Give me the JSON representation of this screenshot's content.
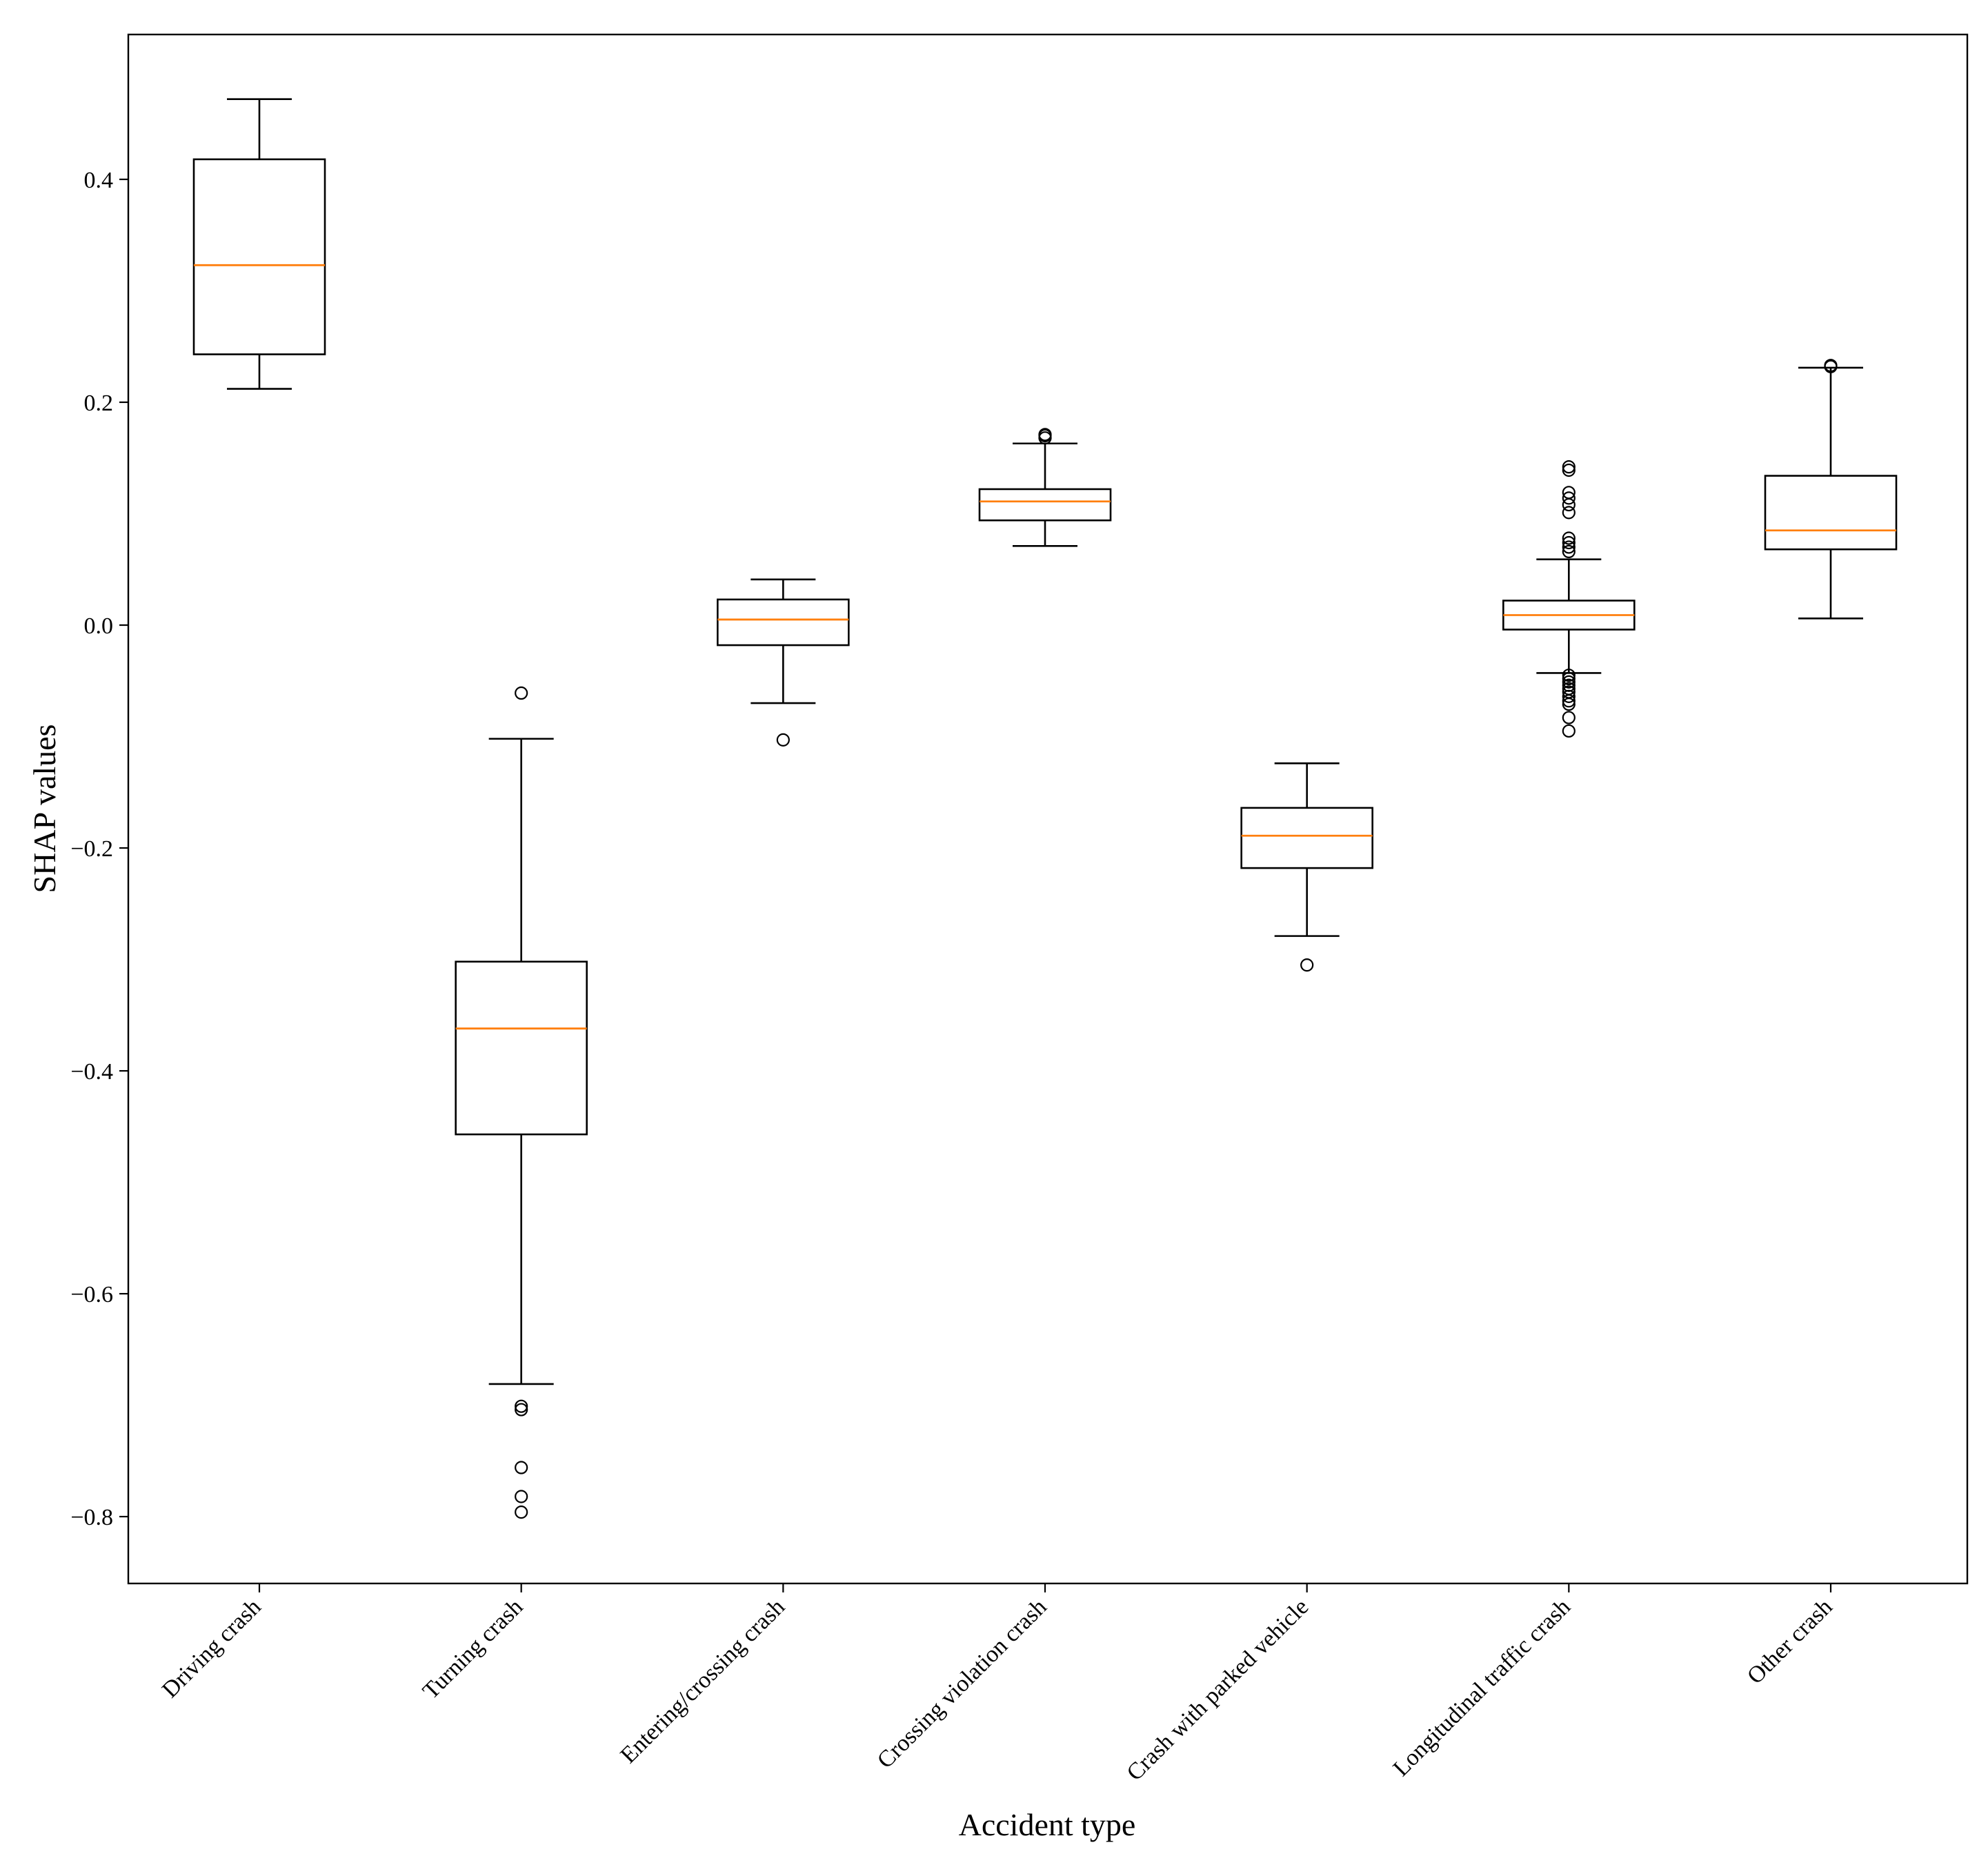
{
  "chart_data": {
    "type": "box",
    "title": "",
    "xlabel": "Accident type",
    "ylabel": "SHAP values",
    "ylim": [
      -0.86,
      0.53
    ],
    "yticks": [
      0.4,
      0.2,
      0.0,
      -0.2,
      -0.4,
      -0.6,
      -0.8
    ],
    "ytick_labels": [
      "0.4",
      "0.2",
      "0.0",
      "−0.2",
      "−0.4",
      "−0.6",
      "−0.8"
    ],
    "grid": false,
    "colors": {
      "box": "#000000",
      "median": "#ff7f0e",
      "flier": "#000000"
    },
    "categories": [
      "Driving crash",
      "Turning crash",
      "Entering/crossing crash",
      "Crossing violation crash",
      "Crash with parked vehicle",
      "Longitudinal traffic crash",
      "Other crash"
    ],
    "boxes": [
      {
        "whislo": 0.212,
        "q1": 0.243,
        "med": 0.323,
        "q3": 0.418,
        "whishi": 0.472,
        "fliers": []
      },
      {
        "whislo": -0.681,
        "q1": -0.457,
        "med": -0.362,
        "q3": -0.302,
        "whishi": -0.102,
        "fliers": [
          -0.061,
          -0.701,
          -0.704,
          -0.756,
          -0.782,
          -0.796
        ]
      },
      {
        "whislo": -0.07,
        "q1": -0.018,
        "med": 0.005,
        "q3": 0.023,
        "whishi": 0.041,
        "fliers": [
          -0.103
        ]
      },
      {
        "whislo": 0.071,
        "q1": 0.094,
        "med": 0.111,
        "q3": 0.122,
        "whishi": 0.163,
        "fliers": [
          0.168,
          0.17,
          0.171
        ]
      },
      {
        "whislo": -0.279,
        "q1": -0.218,
        "med": -0.189,
        "q3": -0.164,
        "whishi": -0.124,
        "fliers": [
          -0.305
        ]
      },
      {
        "whislo": -0.043,
        "q1": -0.004,
        "med": 0.009,
        "q3": 0.022,
        "whishi": 0.059,
        "fliers": [
          0.066,
          0.07,
          0.074,
          0.078,
          0.101,
          0.108,
          0.114,
          0.119,
          0.139,
          0.142,
          -0.045,
          -0.048,
          -0.051,
          -0.054,
          -0.057,
          -0.06,
          -0.064,
          -0.068,
          -0.071,
          -0.083,
          -0.095
        ]
      },
      {
        "whislo": 0.006,
        "q1": 0.068,
        "med": 0.085,
        "q3": 0.134,
        "whishi": 0.231,
        "fliers": [
          0.232,
          0.233
        ]
      }
    ]
  }
}
